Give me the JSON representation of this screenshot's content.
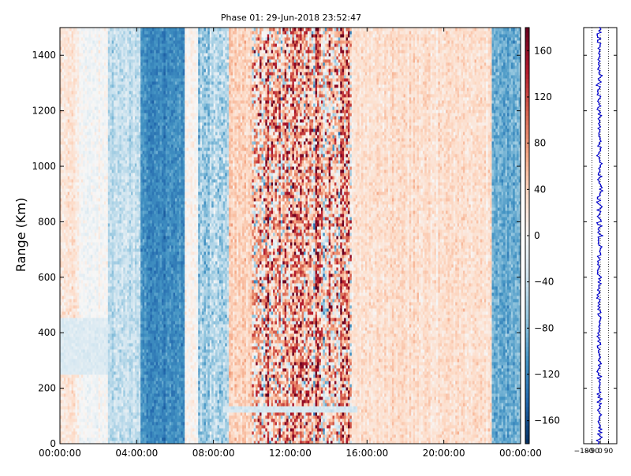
{
  "chart_data": [
    {
      "type": "heatmap",
      "title": "Phase 01: 29-Jun-2018 23:52:47",
      "ylabel": "Range (Km)",
      "xlabel": "",
      "x_tick_labels": [
        "00:00:00",
        "04:00:00",
        "08:00:00",
        "12:00:00",
        "16:00:00",
        "20:00:00",
        "00:00:00"
      ],
      "x_ticks_hours": [
        0,
        4,
        8,
        12,
        16,
        20,
        24
      ],
      "xlim_hours": [
        0,
        24
      ],
      "ylim": [
        0,
        1500
      ],
      "y_ticks": [
        0,
        200,
        400,
        600,
        800,
        1000,
        1200,
        1400
      ],
      "colormap": "RdBu_r",
      "colorbar": {
        "range": [
          -180,
          180
        ],
        "ticks": [
          -160,
          -120,
          -80,
          -40,
          0,
          40,
          80,
          120,
          160
        ]
      },
      "phase_profile_by_hour": [
        {
          "start": 0.0,
          "end": 1.0,
          "mean": 20,
          "spread": 25
        },
        {
          "start": 1.0,
          "end": 2.5,
          "mean": 0,
          "spread": 20
        },
        {
          "start": 2.5,
          "end": 4.2,
          "mean": -40,
          "spread": 30
        },
        {
          "start": 4.2,
          "end": 6.5,
          "mean": -115,
          "spread": 25
        },
        {
          "start": 6.5,
          "end": 7.2,
          "mean": 5,
          "spread": 20
        },
        {
          "start": 7.2,
          "end": 8.8,
          "mean": -55,
          "spread": 45
        },
        {
          "start": 8.8,
          "end": 10.0,
          "mean": 40,
          "spread": 30
        },
        {
          "start": 10.0,
          "end": 15.2,
          "mean": 60,
          "spread": 140
        },
        {
          "start": 15.2,
          "end": 22.5,
          "mean": 30,
          "spread": 25
        },
        {
          "start": 22.5,
          "end": 24.0,
          "mean": -90,
          "spread": 30
        }
      ],
      "low_range_band_km": [
        110,
        140
      ],
      "lower_left_pale_region": {
        "hours": [
          0,
          2.5
        ],
        "range_km": [
          250,
          450
        ]
      }
    },
    {
      "type": "line",
      "title": "",
      "ylim": [
        0,
        1500
      ],
      "x_ticks": [
        -180,
        -90,
        0,
        90
      ],
      "x_tick_labels": [
        "−180",
        "−90",
        "0",
        "90"
      ],
      "xlim": [
        -180,
        180
      ],
      "grid": "dotted-vertical",
      "series_color": "#0000cc",
      "approx_mean": -10,
      "approx_spread": 20
    }
  ]
}
